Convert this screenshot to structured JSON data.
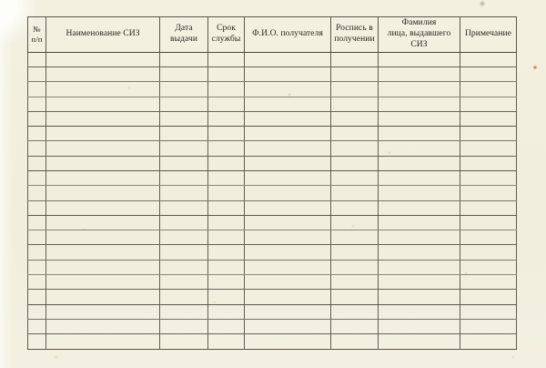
{
  "document": {
    "type": "scanned-form",
    "language": "ru"
  },
  "table": {
    "columns": [
      {
        "id": "num",
        "label": "№\nп/п"
      },
      {
        "id": "siz_name",
        "label": "Наименование СИЗ"
      },
      {
        "id": "issue_date",
        "label": "Дата\nвыдачи"
      },
      {
        "id": "service_life",
        "label": "Срок\nслужбы"
      },
      {
        "id": "recipient",
        "label": "Ф.И.О. получателя"
      },
      {
        "id": "signature",
        "label": "Роспись в\nполучении"
      },
      {
        "id": "issuer",
        "label": "Фамилия\nлица, выдавшего\nСИЗ"
      },
      {
        "id": "notes",
        "label": "Примечание"
      }
    ],
    "row_count": 20,
    "cell_value": ""
  },
  "colors": {
    "paper": "#f2efdf",
    "rule_dark": "#46433a",
    "rule_mid": "#5c584d",
    "rule_light": "#8b8779",
    "text": "#28261c"
  }
}
